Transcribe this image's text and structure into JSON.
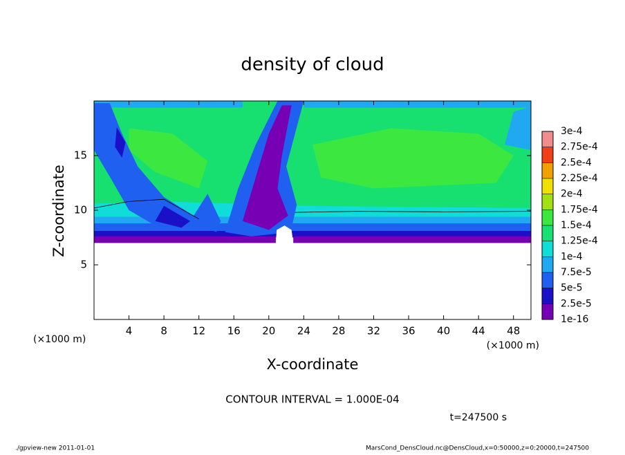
{
  "chart_data": {
    "type": "contour",
    "title": "density of cloud",
    "x_label": "X-coordinate",
    "y_label": "Z-coordinate",
    "x_unit": "(×1000 m)",
    "y_unit": "(×1000 m)",
    "xlim": [
      0,
      50
    ],
    "ylim": [
      0,
      20
    ],
    "xticks": [
      4,
      8,
      12,
      16,
      20,
      24,
      28,
      32,
      36,
      40,
      44,
      48
    ],
    "yticks": [
      5,
      10,
      15
    ],
    "contour_note": "CONTOUR INTERVAL = 1.000E-04",
    "time_label": "t=247500 s",
    "colorbar": {
      "ticks": [
        {
          "value": 1e-16,
          "label": "1e-16"
        },
        {
          "value": 2.5e-05,
          "label": "2.5e-5"
        },
        {
          "value": 5e-05,
          "label": "5e-5"
        },
        {
          "value": 7.5e-05,
          "label": "7.5e-5"
        },
        {
          "value": 0.0001,
          "label": "1e-4"
        },
        {
          "value": 0.000125,
          "label": "1.25e-4"
        },
        {
          "value": 0.00015,
          "label": "1.5e-4"
        },
        {
          "value": 0.000175,
          "label": "1.75e-4"
        },
        {
          "value": 0.0002,
          "label": "2e-4"
        },
        {
          "value": 0.000225,
          "label": "2.25e-4"
        },
        {
          "value": 0.00025,
          "label": "2.5e-4"
        },
        {
          "value": 0.000275,
          "label": "2.75e-4"
        },
        {
          "value": 0.0003,
          "label": "3e-4"
        }
      ],
      "colors": [
        "#7800b4",
        "#1a10c8",
        "#2060f0",
        "#20a8f0",
        "#10dcd8",
        "#18e070",
        "#3ce840",
        "#a0e014",
        "#f0e000",
        "#f0a000",
        "#f04018",
        "#f08c8c"
      ]
    },
    "footer_left": "./gpview-new   2011-01-01",
    "footer_right": "MarsCond_DensCloud.nc@DensCloud,x=0:50000,z=0:20000,t=247500"
  }
}
